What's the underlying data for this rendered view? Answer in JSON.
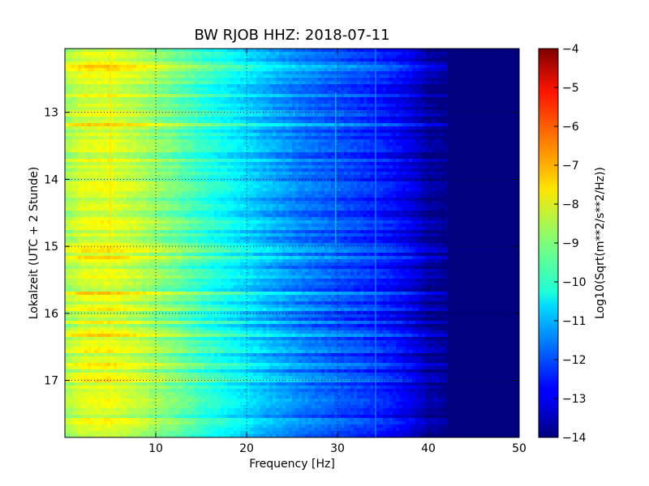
{
  "chart_data": {
    "type": "heatmap",
    "title": "BW RJOB HHZ: 2018-07-11",
    "xlabel": "Frequency [Hz]",
    "ylabel": "Lokalzeit (UTC + 2 Stunde)",
    "xlim": [
      0,
      50
    ],
    "ylim": [
      12.05,
      17.85
    ],
    "y_inverted": true,
    "grid": true,
    "x_ticks": [
      10,
      20,
      30,
      40,
      50
    ],
    "x_tick_labels": [
      "10",
      "20",
      "30",
      "40",
      "50"
    ],
    "y_ticks": [
      13,
      14,
      15,
      16,
      17
    ],
    "y_tick_labels": [
      "13",
      "14",
      "15",
      "16",
      "17"
    ],
    "colorbar": {
      "label": "Log10(Sqrt(m**2/s**2/Hz))",
      "range": [
        -14,
        -4
      ],
      "ticks": [
        -4,
        -5,
        -6,
        -7,
        -8,
        -9,
        -10,
        -11,
        -12,
        -13,
        -14
      ],
      "tick_labels": [
        "−4",
        "−5",
        "−6",
        "−7",
        "−8",
        "−9",
        "−10",
        "−11",
        "−12",
        "−13",
        "−14"
      ],
      "colormap": "jet"
    },
    "level_profile": {
      "frequency_hz": [
        0,
        2,
        5,
        8,
        12,
        15,
        18,
        22,
        26,
        30,
        33,
        36,
        38,
        40,
        42,
        50
      ],
      "log10_amplitude": [
        -8.7,
        -8.2,
        -8.1,
        -8.5,
        -9.2,
        -9.8,
        -10.3,
        -11.0,
        -11.6,
        -12.0,
        -12.3,
        -12.7,
        -13.1,
        -13.7,
        -14.0,
        -14.0
      ]
    },
    "spectral_lines": [
      {
        "frequency_hz": 5.0,
        "from_hour": 12.05,
        "to_hour": 14.9,
        "log10_amplitude": -7.5
      },
      {
        "frequency_hz": 29.8,
        "from_hour": 12.7,
        "to_hour": 14.95,
        "log10_amplitude": -11.0
      },
      {
        "frequency_hz": 34.2,
        "from_hour": 12.05,
        "to_hour": 17.85,
        "log10_amplitude": -11.5
      }
    ]
  }
}
